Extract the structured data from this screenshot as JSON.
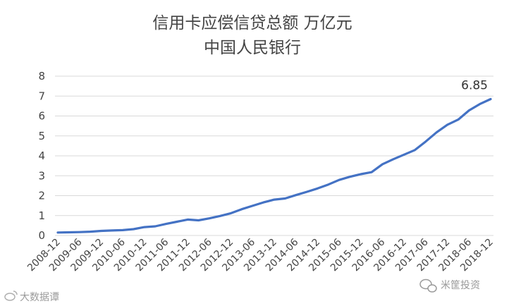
{
  "chart_data": {
    "type": "line",
    "title": "信用卡应偿信贷总额 万亿元",
    "subtitle": "中国人民银行",
    "xlabel": "",
    "ylabel": "",
    "ylim": [
      0,
      8
    ],
    "y_ticks": [
      "0",
      "1",
      "2",
      "3",
      "4",
      "5",
      "6",
      "7",
      "8"
    ],
    "grid": true,
    "legend": "none",
    "line_color": "#4472C4",
    "x_tick_labels": [
      "2008-12",
      "2009-06",
      "2009-12",
      "2010-06",
      "2010-12",
      "2011-06",
      "2011-12",
      "2012-06",
      "2012-12",
      "2013-06",
      "2013-12",
      "2014-06",
      "2014-12",
      "2015-06",
      "2015-12",
      "2016-06",
      "2016-12",
      "2017-06",
      "2017-12",
      "2018-06",
      "2018-12"
    ],
    "x": [
      "2008-12",
      "2009-03",
      "2009-06",
      "2009-09",
      "2009-12",
      "2010-03",
      "2010-06",
      "2010-09",
      "2010-12",
      "2011-03",
      "2011-06",
      "2011-09",
      "2011-12",
      "2012-03",
      "2012-06",
      "2012-09",
      "2012-12",
      "2013-03",
      "2013-06",
      "2013-09",
      "2013-12",
      "2014-03",
      "2014-06",
      "2014-09",
      "2014-12",
      "2015-03",
      "2015-06",
      "2015-09",
      "2015-12",
      "2016-03",
      "2016-06",
      "2016-09",
      "2016-12",
      "2017-03",
      "2017-06",
      "2017-09",
      "2017-12",
      "2018-03",
      "2018-06",
      "2018-09",
      "2018-12"
    ],
    "series": [
      {
        "values": [
          0.15,
          0.16,
          0.17,
          0.19,
          0.23,
          0.25,
          0.27,
          0.32,
          0.42,
          0.46,
          0.58,
          0.69,
          0.8,
          0.76,
          0.86,
          0.98,
          1.12,
          1.32,
          1.49,
          1.66,
          1.8,
          1.86,
          2.03,
          2.19,
          2.36,
          2.56,
          2.79,
          2.95,
          3.08,
          3.18,
          3.58,
          3.83,
          4.06,
          4.29,
          4.72,
          5.18,
          5.56,
          5.82,
          6.28,
          6.6,
          6.85
        ]
      }
    ],
    "annotations": [
      {
        "x": "2018-12",
        "y": 6.85,
        "text": "6.85"
      }
    ]
  },
  "watermarks": {
    "left": "大数据谭",
    "right": "米筐投资"
  },
  "colors": {
    "grid": "#d9d9d9",
    "text": "#444444",
    "watermark": "#9a9a9a"
  }
}
